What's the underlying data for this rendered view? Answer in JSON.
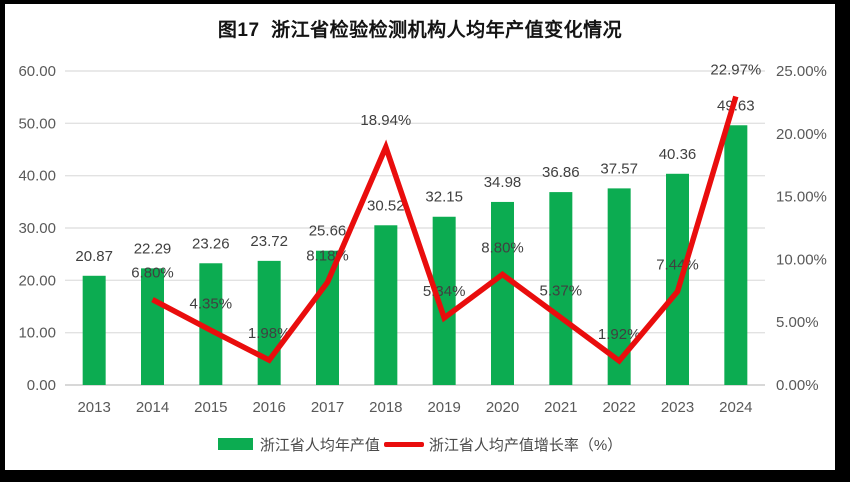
{
  "title": "图17  浙江省检验检测机构人均年产值变化情况",
  "chart_data": {
    "type": "bar",
    "combo": "bar+line",
    "title": "图17  浙江省检验检测机构人均年产值变化情况",
    "categories": [
      "2013",
      "2014",
      "2015",
      "2016",
      "2017",
      "2018",
      "2019",
      "2020",
      "2021",
      "2022",
      "2023",
      "2024"
    ],
    "series": [
      {
        "name": "浙江省人均年产值",
        "type": "bar",
        "axis": "left",
        "color": "#0cac51",
        "values": [
          20.87,
          22.29,
          23.26,
          23.72,
          25.66,
          30.52,
          32.15,
          34.98,
          36.86,
          37.57,
          40.36,
          49.63
        ],
        "labels": [
          "20.87",
          "22.29",
          "23.26",
          "23.72",
          "25.66",
          "30.52",
          "32.15",
          "34.98",
          "36.86",
          "37.57",
          "40.36",
          "49.63"
        ]
      },
      {
        "name": "浙江省人均产值增长率（%）",
        "type": "line",
        "axis": "right",
        "color": "#e90d0d",
        "values": [
          null,
          6.8,
          4.35,
          1.98,
          8.18,
          18.94,
          5.34,
          8.8,
          5.37,
          1.92,
          7.44,
          22.97
        ],
        "labels": [
          null,
          "6.80%",
          "4.35%",
          "1.98%",
          "8.18%",
          "18.94%",
          "5.34%",
          "8.80%",
          "5.37%",
          "1.92%",
          "7.44%",
          "22.97%"
        ]
      }
    ],
    "left_axis": {
      "min": 0,
      "max": 60,
      "step": 10,
      "ticks": [
        "0.00",
        "10.00",
        "20.00",
        "30.00",
        "40.00",
        "50.00",
        "60.00"
      ]
    },
    "right_axis": {
      "min": 0,
      "max": 25,
      "step": 5,
      "ticks": [
        "0.00%",
        "5.00%",
        "10.00%",
        "15.00%",
        "20.00%",
        "25.00%"
      ]
    },
    "grid": "horizontal",
    "legend_position": "bottom"
  },
  "legend": {
    "items": [
      {
        "label": "浙江省人均年产值",
        "swatch": "bar",
        "color": "#0cac51"
      },
      {
        "label": "浙江省人均产值增长率（%）",
        "swatch": "line",
        "color": "#e90d0d"
      }
    ]
  },
  "colors": {
    "bar_green": "#0cac51",
    "line_red": "#e90d0d",
    "gridline": "#e2e2e2",
    "axis_line": "#cccccc",
    "axis_text": "#595959",
    "label_text": "#404040",
    "frame": "#000000",
    "background": "#ffffff"
  }
}
